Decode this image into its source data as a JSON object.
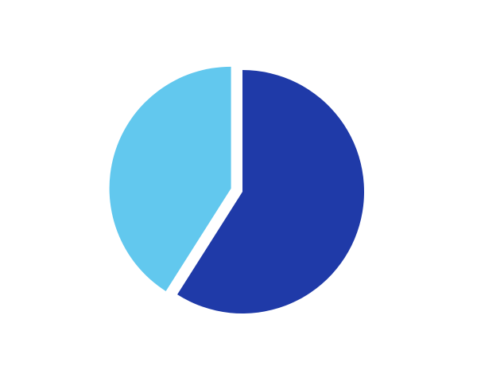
{
  "chart_data": {
    "type": "pie",
    "title": "",
    "legend": "none",
    "start_angle_deg": 0,
    "direction": "clockwise",
    "slices": [
      {
        "value": 59,
        "color": "#1f3aa8",
        "exploded": false
      },
      {
        "value": 41,
        "color": "#62c8ee",
        "exploded": true
      }
    ]
  }
}
